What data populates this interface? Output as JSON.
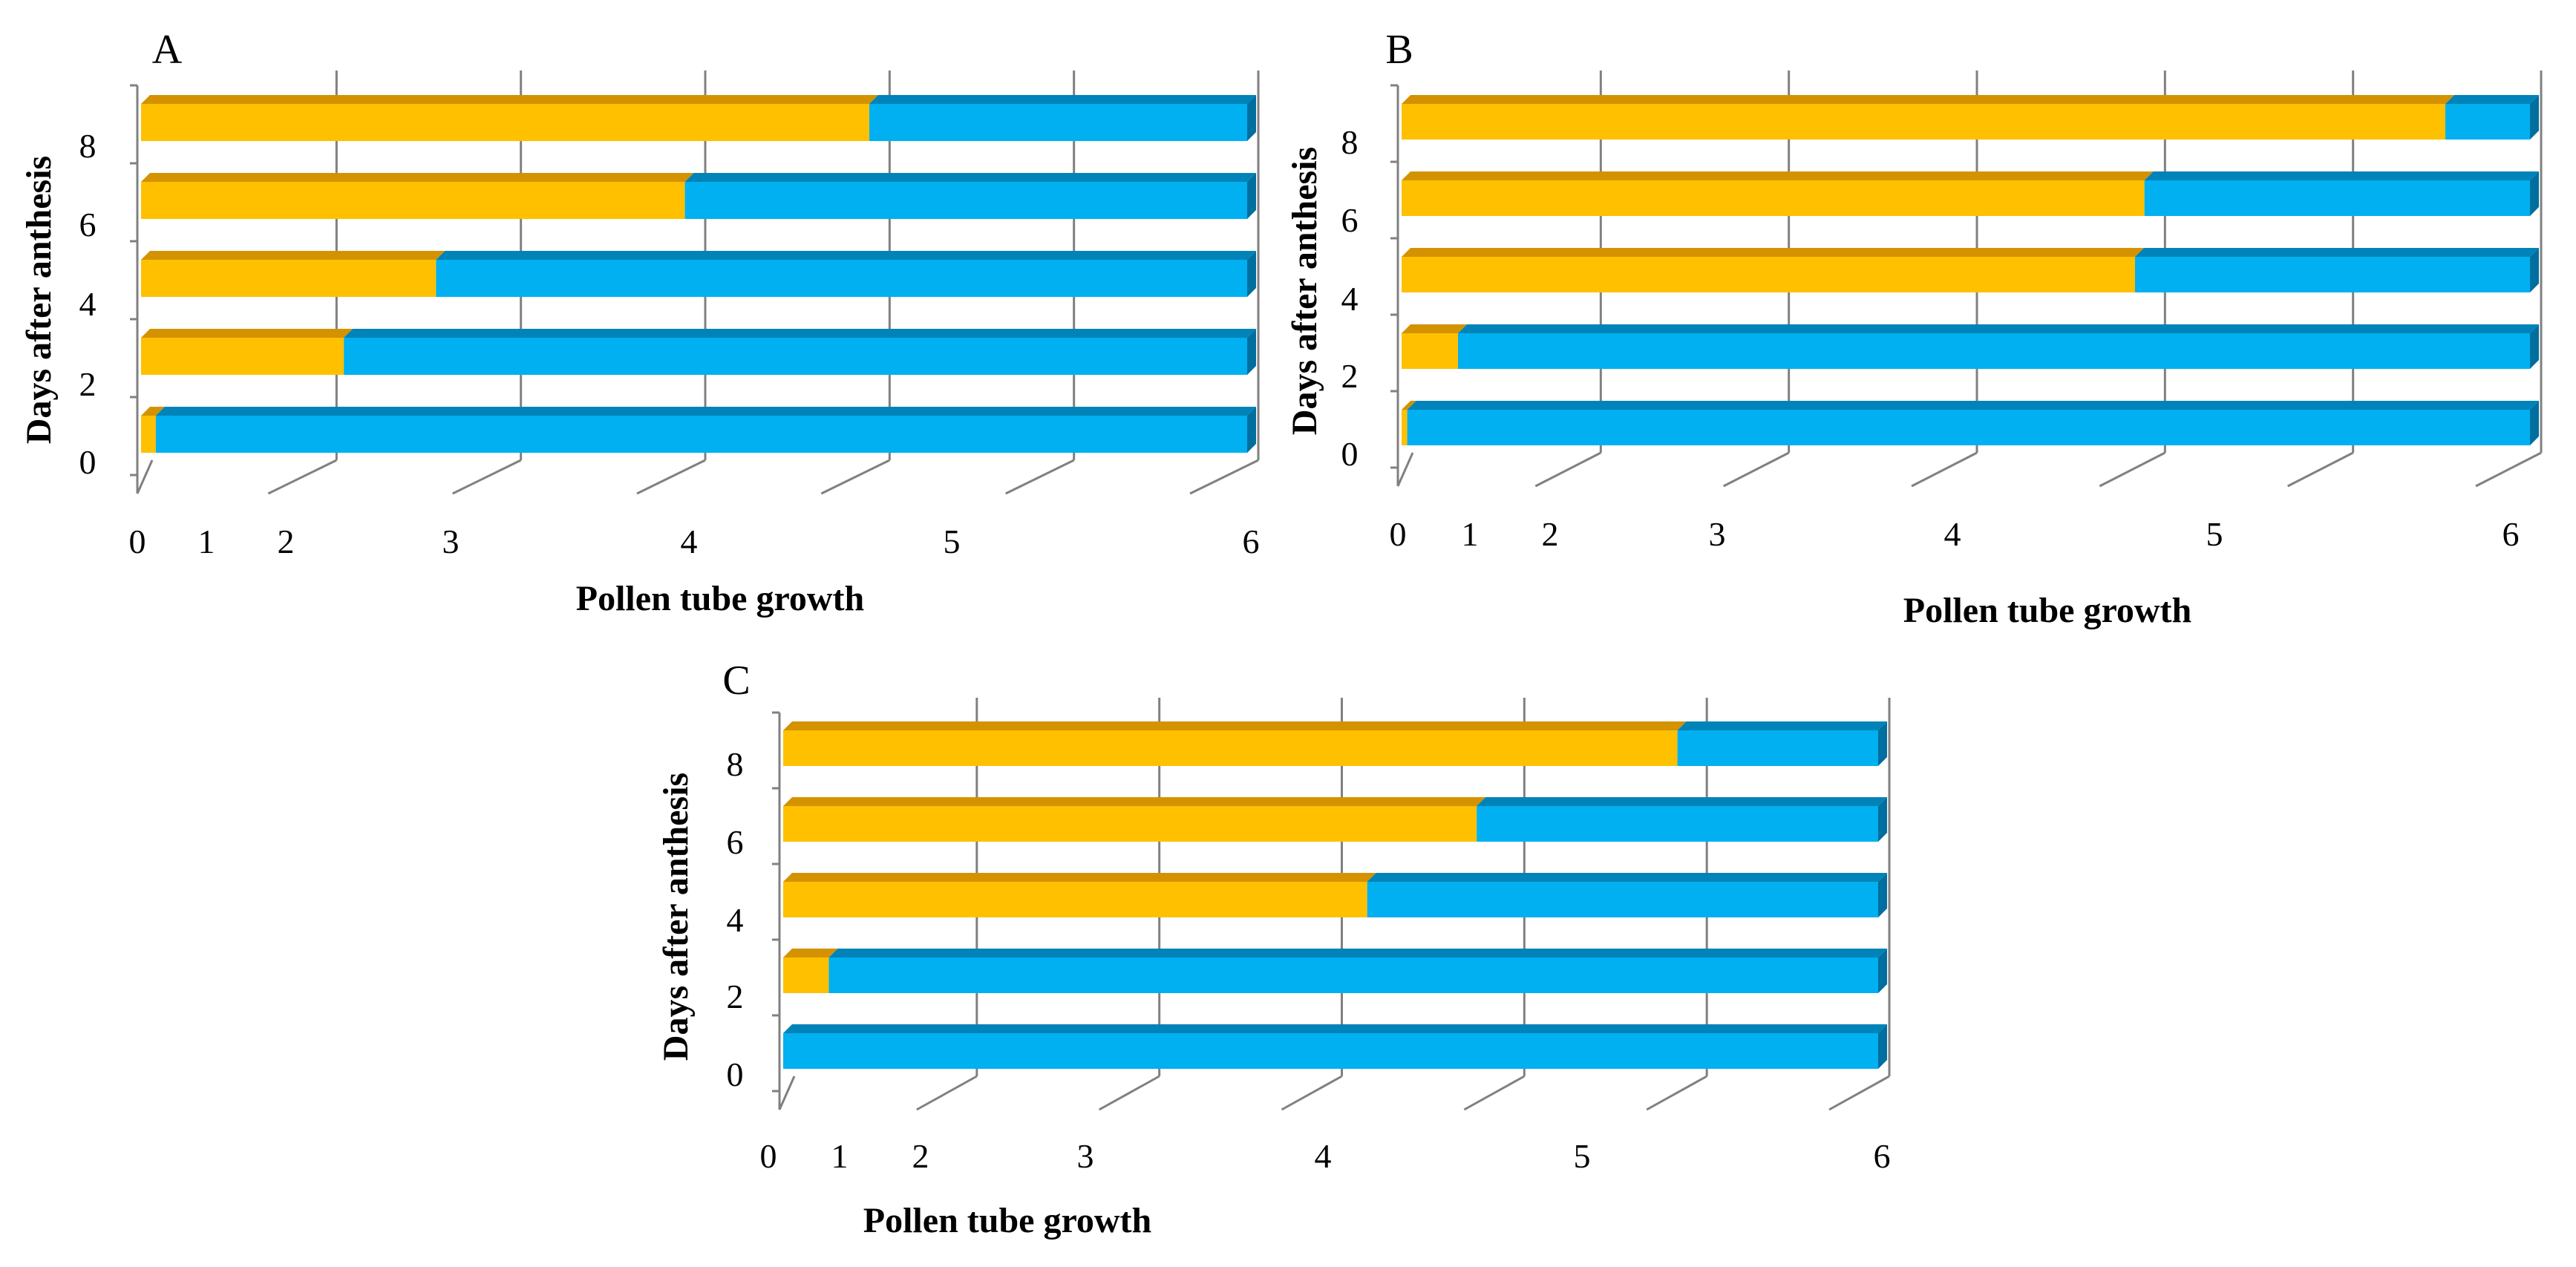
{
  "colors": {
    "yellow_face": "#FFC000",
    "yellow_top": "#D49200",
    "blue_face": "#00B0F0",
    "blue_top": "#0083B8",
    "blue_side": "#006E9E",
    "axis": "#808080",
    "gridline": "#808080",
    "text": "#000000"
  },
  "chart_data": [
    {
      "type": "bar",
      "orientation": "horizontal",
      "stacked": true,
      "panel_label": "A",
      "xlabel": "Pollen tube growth",
      "ylabel": "Days after anthesis",
      "x_ticks": [
        "0",
        "1",
        "2",
        "3",
        "4",
        "5",
        "6"
      ],
      "y_ticks": [
        "0",
        "2",
        "4",
        "6",
        "8"
      ],
      "categories": [
        "0",
        "2",
        "4",
        "6",
        "8"
      ],
      "series": [
        {
          "name": "yellow",
          "values": [
            0.08,
            1.1,
            1.6,
            2.95,
            3.95
          ]
        },
        {
          "name": "blue",
          "values": [
            5.92,
            4.9,
            4.4,
            3.05,
            2.05
          ]
        }
      ]
    },
    {
      "type": "bar",
      "orientation": "horizontal",
      "stacked": true,
      "panel_label": "B",
      "xlabel": "Pollen tube growth",
      "ylabel": "Days after anthesis",
      "x_ticks": [
        "0",
        "1",
        "2",
        "3",
        "4",
        "5",
        "6"
      ],
      "y_ticks": [
        "0",
        "2",
        "4",
        "6",
        "8"
      ],
      "categories": [
        "0",
        "2",
        "4",
        "6",
        "8"
      ],
      "series": [
        {
          "name": "yellow",
          "values": [
            0.03,
            0.3,
            3.9,
            3.95,
            5.55
          ]
        },
        {
          "name": "blue",
          "values": [
            5.97,
            5.7,
            2.1,
            2.05,
            0.45
          ]
        }
      ]
    },
    {
      "type": "bar",
      "orientation": "horizontal",
      "stacked": true,
      "panel_label": "C",
      "xlabel": "Pollen tube growth",
      "ylabel": "Days after anthesis",
      "x_ticks": [
        "0",
        "1",
        "2",
        "3",
        "4",
        "5",
        "6"
      ],
      "y_ticks": [
        "0",
        "2",
        "4",
        "6",
        "8"
      ],
      "categories": [
        "0",
        "2",
        "4",
        "6",
        "8"
      ],
      "series": [
        {
          "name": "yellow",
          "values": [
            0.0,
            0.25,
            3.2,
            3.8,
            4.9
          ]
        },
        {
          "name": "blue",
          "values": [
            6.0,
            5.75,
            2.8,
            2.2,
            1.1
          ]
        }
      ]
    }
  ]
}
